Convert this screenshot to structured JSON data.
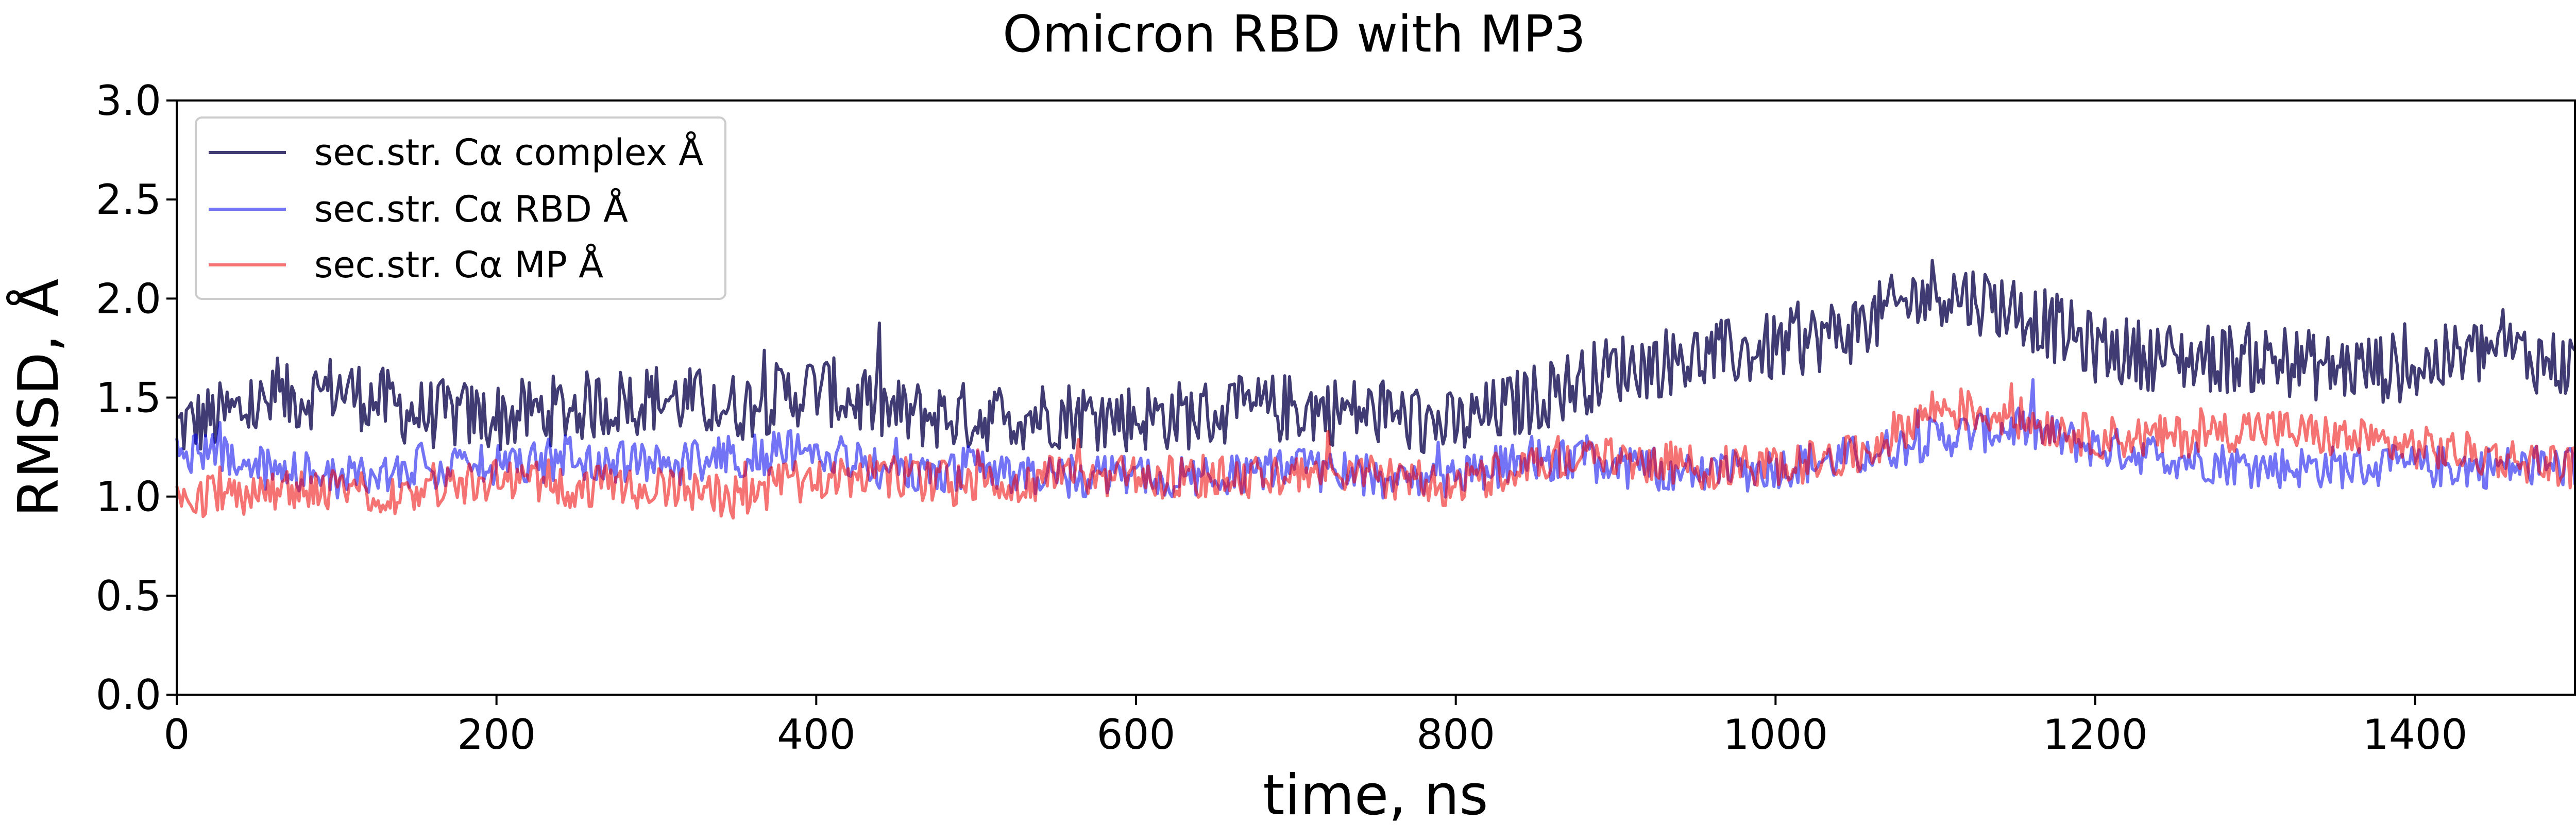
{
  "chart_data": {
    "type": "line",
    "title": "Omicron RBD with MP3",
    "xlabel": "time, ns",
    "ylabel": "RMSD, Å",
    "xlim": [
      0,
      1500
    ],
    "ylim": [
      0.0,
      3.0
    ],
    "x_ticks": [
      "0",
      "200",
      "400",
      "600",
      "800",
      "1000",
      "1200",
      "1400"
    ],
    "y_ticks": [
      "0.0",
      "0.5",
      "1.0",
      "1.5",
      "2.0",
      "2.5",
      "3.0"
    ],
    "grid": false,
    "legend_position": "top-left",
    "x": [
      0,
      50,
      100,
      150,
      200,
      250,
      300,
      350,
      400,
      450,
      500,
      550,
      600,
      650,
      700,
      750,
      800,
      850,
      900,
      950,
      1000,
      1050,
      1100,
      1150,
      1200,
      1250,
      1300,
      1350,
      1400,
      1450,
      1500
    ],
    "series": [
      {
        "name": "sec.str. Cα complex Å",
        "color": "#1f1a5a",
        "opacity": 0.85,
        "values": [
          1.35,
          1.45,
          1.55,
          1.42,
          1.4,
          1.45,
          1.5,
          1.45,
          1.55,
          1.42,
          1.4,
          1.42,
          1.4,
          1.42,
          1.45,
          1.42,
          1.35,
          1.5,
          1.65,
          1.7,
          1.75,
          1.85,
          2.05,
          1.95,
          1.75,
          1.7,
          1.7,
          1.65,
          1.65,
          1.75,
          1.65
        ]
      },
      {
        "name": "sec.str. Cα RBD Å",
        "color": "#0000ee",
        "opacity": 0.55,
        "values": [
          1.25,
          1.15,
          1.1,
          1.15,
          1.15,
          1.2,
          1.15,
          1.2,
          1.25,
          1.1,
          1.15,
          1.1,
          1.1,
          1.1,
          1.15,
          1.1,
          1.1,
          1.2,
          1.15,
          1.1,
          1.15,
          1.2,
          1.3,
          1.35,
          1.25,
          1.2,
          1.15,
          1.15,
          1.15,
          1.15,
          1.15
        ]
      },
      {
        "name": "sec.str. Cα MP Å",
        "color": "#ee0000",
        "opacity": 0.55,
        "values": [
          1.0,
          1.0,
          1.05,
          1.0,
          1.1,
          1.05,
          1.05,
          1.0,
          1.1,
          1.1,
          1.05,
          1.1,
          1.1,
          1.1,
          1.1,
          1.1,
          1.05,
          1.2,
          1.2,
          1.15,
          1.15,
          1.2,
          1.45,
          1.4,
          1.3,
          1.3,
          1.35,
          1.3,
          1.25,
          1.2,
          1.15
        ]
      }
    ]
  }
}
